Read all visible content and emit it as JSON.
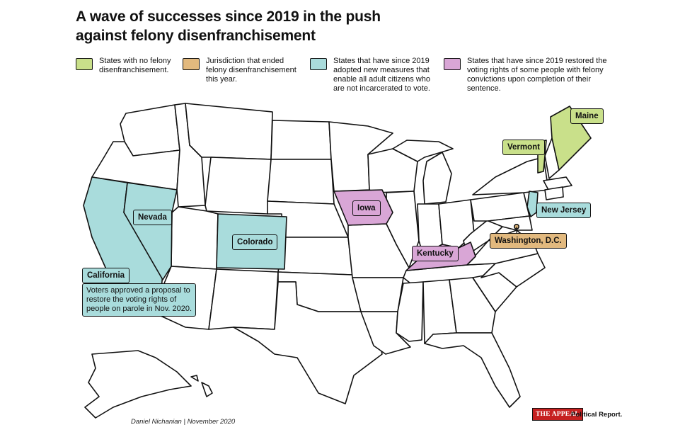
{
  "title": "A wave of successes since 2019 in the push\nagainst felony disenfranchisement",
  "colors": {
    "no_disenfranchisement": "#c9e08a",
    "ended_this_year": "#e2b97e",
    "new_measures": "#a9dcdc",
    "restored_rights": "#d9a6d6",
    "default_state": "#ffffff",
    "stroke": "#111111",
    "logo_red": "#c62020"
  },
  "legend": [
    {
      "color_key": "no_disenfranchisement",
      "text": "States with no felony\ndisenfranchisement."
    },
    {
      "color_key": "ended_this_year",
      "text": "Jurisdiction that ended\nfelony disenfranchisement\nthis year."
    },
    {
      "color_key": "new_measures",
      "text": "States that have since 2019\nadopted new measures that\nenable all adult citizens who\nare not incarcerated to vote."
    },
    {
      "color_key": "restored_rights",
      "text": "States that have since 2019 restored the\nvoting rights of some people with felony\nconvictions upon completion of their\nsentence."
    }
  ],
  "state_labels": {
    "maine": "Maine",
    "vermont": "Vermont",
    "new_jersey": "New Jersey",
    "washington_dc": "Washington, D.C.",
    "iowa": "Iowa",
    "kentucky": "Kentucky",
    "nevada": "Nevada",
    "colorado": "Colorado",
    "california": "California"
  },
  "california_note": "Voters approved a proposal to\nrestore the voting rights of\npeople on parole in Nov. 2020.",
  "credit": "Daniel Nichanian | November 2020",
  "logo": {
    "brand": "THE APPEAL",
    "section": "Political Report."
  }
}
